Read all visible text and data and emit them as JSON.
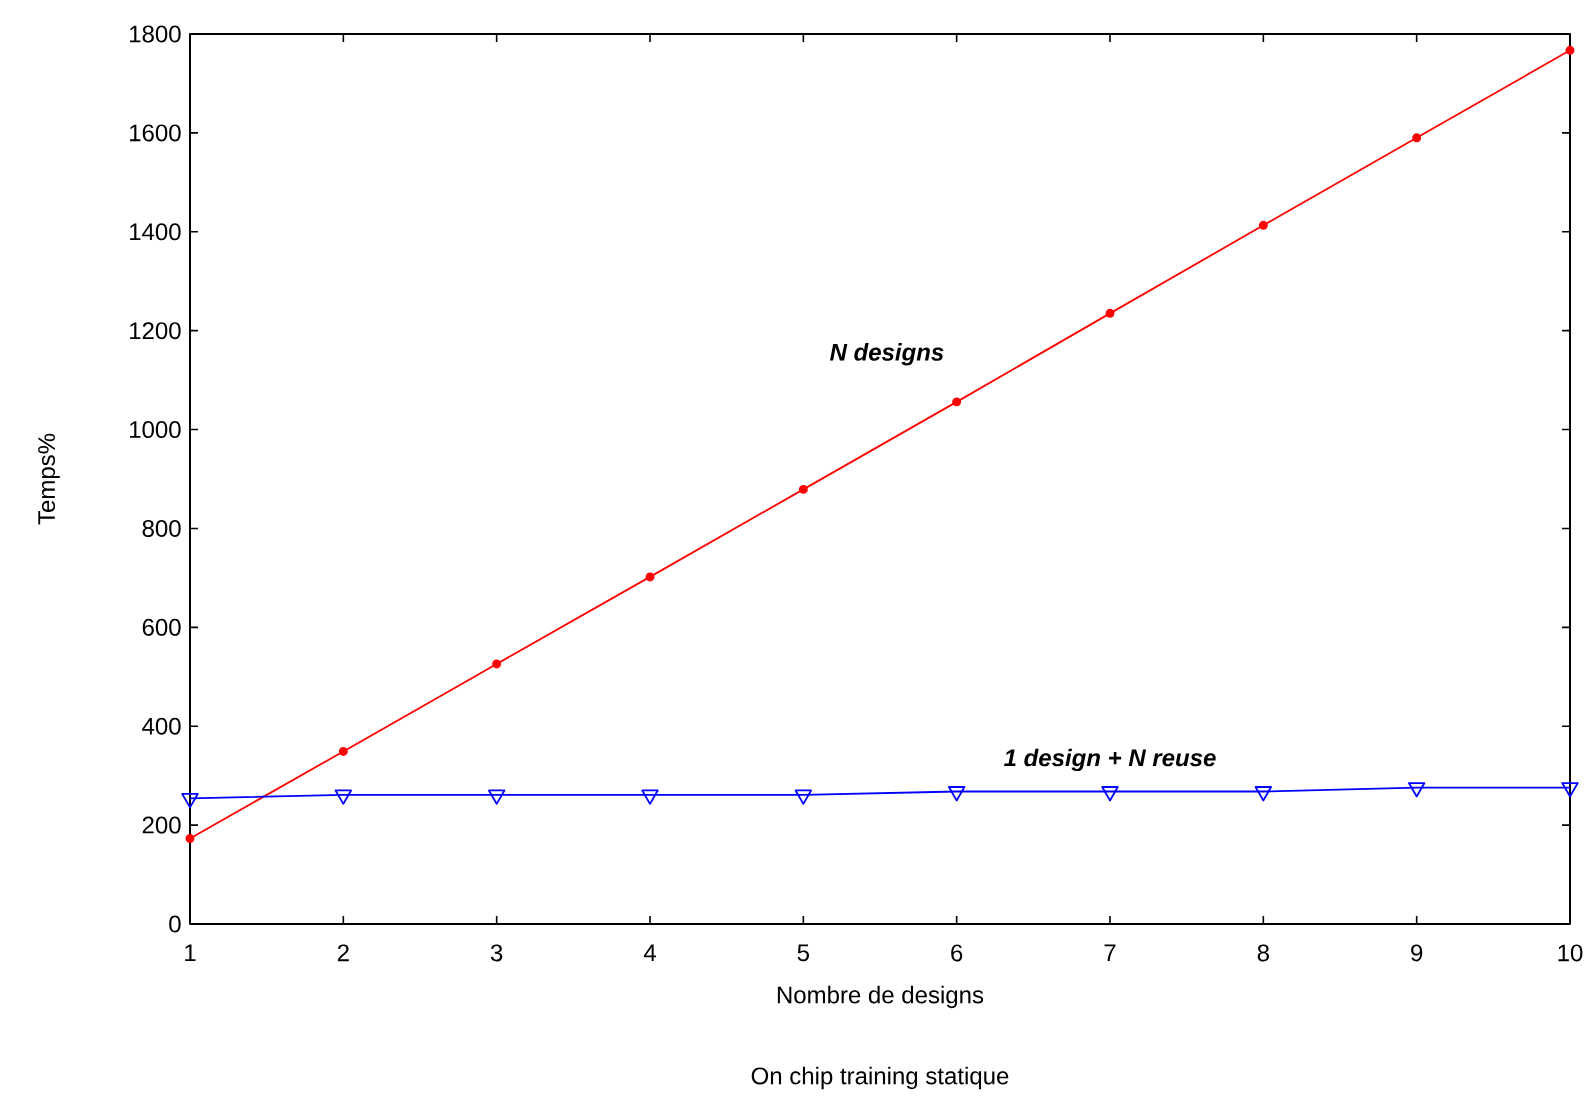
{
  "chart_data": {
    "type": "line",
    "xlabel": "Nombre de designs",
    "ylabel": "Temps%",
    "annotations": [
      "On chip training statique"
    ],
    "x": [
      1,
      2,
      3,
      4,
      5,
      6,
      7,
      8,
      9,
      10
    ],
    "series": [
      {
        "name": "N designs",
        "color": "#ff0000",
        "marker": "circle",
        "values": [
          173,
          349,
          526,
          702,
          879,
          1056,
          1235,
          1413,
          1590,
          1767
        ]
      },
      {
        "name": "1 design + N reuse",
        "color": "#0000ff",
        "marker": "triangle",
        "values": [
          254,
          261,
          261,
          261,
          261,
          268,
          268,
          268,
          276,
          276
        ]
      }
    ],
    "xlim": [
      1,
      10
    ],
    "ylim": [
      0,
      1800
    ],
    "xticks": [
      1,
      2,
      3,
      4,
      5,
      6,
      7,
      8,
      9,
      10
    ],
    "yticks": [
      0,
      200,
      400,
      600,
      800,
      1000,
      1200,
      1400,
      1600,
      1800
    ],
    "grid": false,
    "line_style": "solid"
  }
}
